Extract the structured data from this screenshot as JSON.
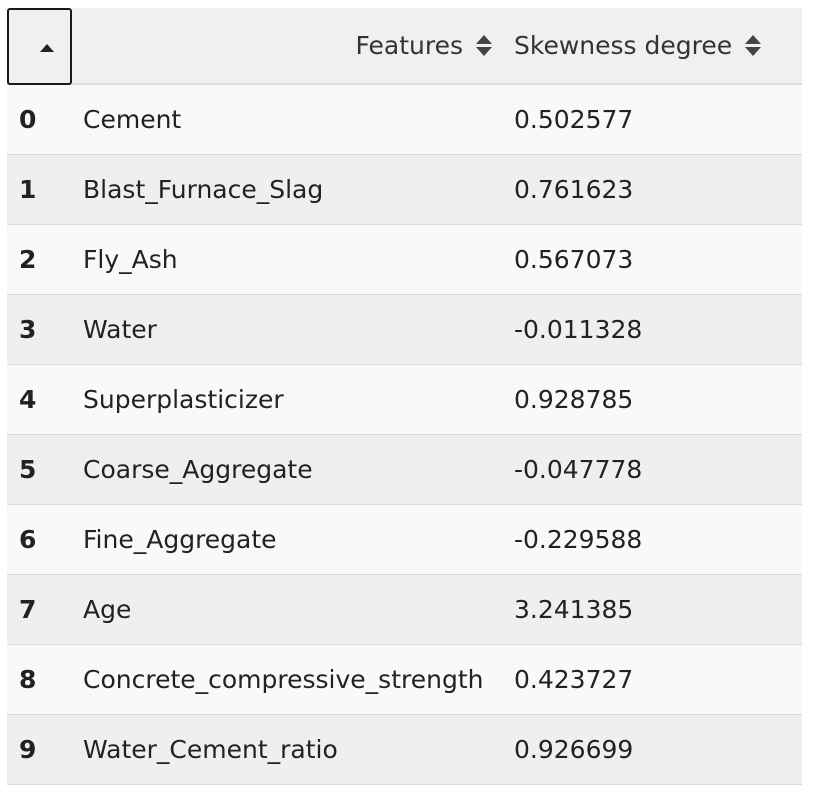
{
  "table": {
    "columns": {
      "index": "",
      "features": "Features",
      "skewness": "Skewness degree"
    },
    "index_sort_icon": "sort-ascending-icon",
    "column_sort_icon": "sort-both-icon",
    "rows": [
      {
        "index": "0",
        "feature": "Cement",
        "skewness": "0.502577"
      },
      {
        "index": "1",
        "feature": "Blast_Furnace_Slag",
        "skewness": "0.761623"
      },
      {
        "index": "2",
        "feature": "Fly_Ash",
        "skewness": "0.567073"
      },
      {
        "index": "3",
        "feature": "Water",
        "skewness": "-0.011328"
      },
      {
        "index": "4",
        "feature": "Superplasticizer",
        "skewness": "0.928785"
      },
      {
        "index": "5",
        "feature": "Coarse_Aggregate",
        "skewness": "-0.047778"
      },
      {
        "index": "6",
        "feature": "Fine_Aggregate",
        "skewness": "-0.229588"
      },
      {
        "index": "7",
        "feature": "Age",
        "skewness": "3.241385"
      },
      {
        "index": "8",
        "feature": "Concrete_compressive_strength",
        "skewness": "0.423727"
      },
      {
        "index": "9",
        "feature": "Water_Cement_ratio",
        "skewness": "0.926699"
      }
    ]
  },
  "colors": {
    "header_bg": "#f0f0f0",
    "row_odd_bg": "#f9f9f9",
    "row_even_bg": "#efefef",
    "text": "#222222"
  }
}
